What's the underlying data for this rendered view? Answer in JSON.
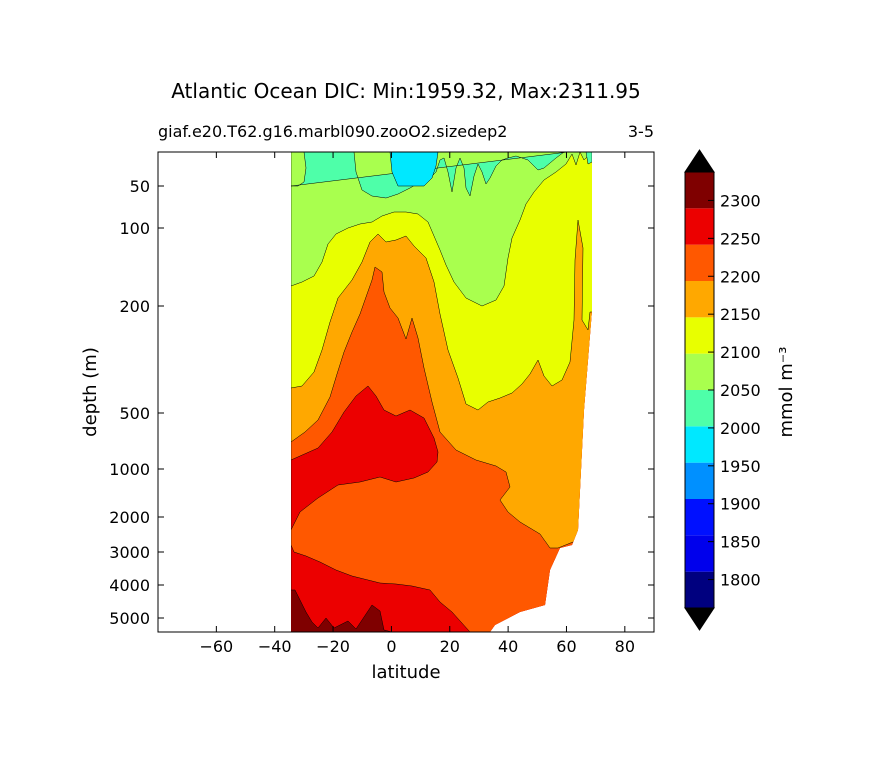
{
  "chart_data": {
    "type": "heatmap",
    "title": "Atlantic Ocean DIC: Min:1959.32, Max:2311.95",
    "subtitle_left": "giaf.e20.T62.g16.marbl090.zooO2.sizedep2",
    "subtitle_right": "3-5",
    "xlabel": "latitude",
    "ylabel": "depth (m)",
    "xlim": [
      -80,
      90
    ],
    "x_ticks": [
      -60,
      -40,
      -20,
      0,
      20,
      40,
      60,
      80
    ],
    "x_tick_labels": [
      "−60",
      "−40",
      "−20",
      "0",
      "20",
      "40",
      "60",
      "80"
    ],
    "y_ticks": [
      "50",
      "100",
      "200",
      "500",
      "1000",
      "2000",
      "3000",
      "4000",
      "5000"
    ],
    "y_axis_note": "depth increases downward; piecewise stretched depth axis",
    "data_extent_latitude": [
      -34,
      68
    ],
    "colorbar": {
      "label": "mmol m⁻³",
      "tick_labels": [
        "1800",
        "1850",
        "1900",
        "1950",
        "2000",
        "2050",
        "2100",
        "2150",
        "2200",
        "2250",
        "2300"
      ],
      "levels": [
        1775,
        1800,
        1825,
        1850,
        1875,
        1900,
        1925,
        1950,
        1975,
        2000,
        2025,
        2050,
        2075,
        2100,
        2125,
        2150,
        2175,
        2200,
        2225,
        2250,
        2275,
        2300,
        2325,
        2350
      ],
      "colors": [
        "#00007f",
        "#0000ec",
        "#0010ff",
        "#0090ff",
        "#00e8ff",
        "#4effa9",
        "#a9ff4e",
        "#e8ff00",
        "#ffa800",
        "#ff5800",
        "#ec0000",
        "#7f0000"
      ],
      "extend": "both"
    },
    "grid": false,
    "regions_from_surface_to_bottom": [
      "2000-2050",
      "2050-2100",
      "2100-2150",
      "2150-2200",
      "2200-2250",
      "2250-2300",
      "2300+"
    ]
  }
}
